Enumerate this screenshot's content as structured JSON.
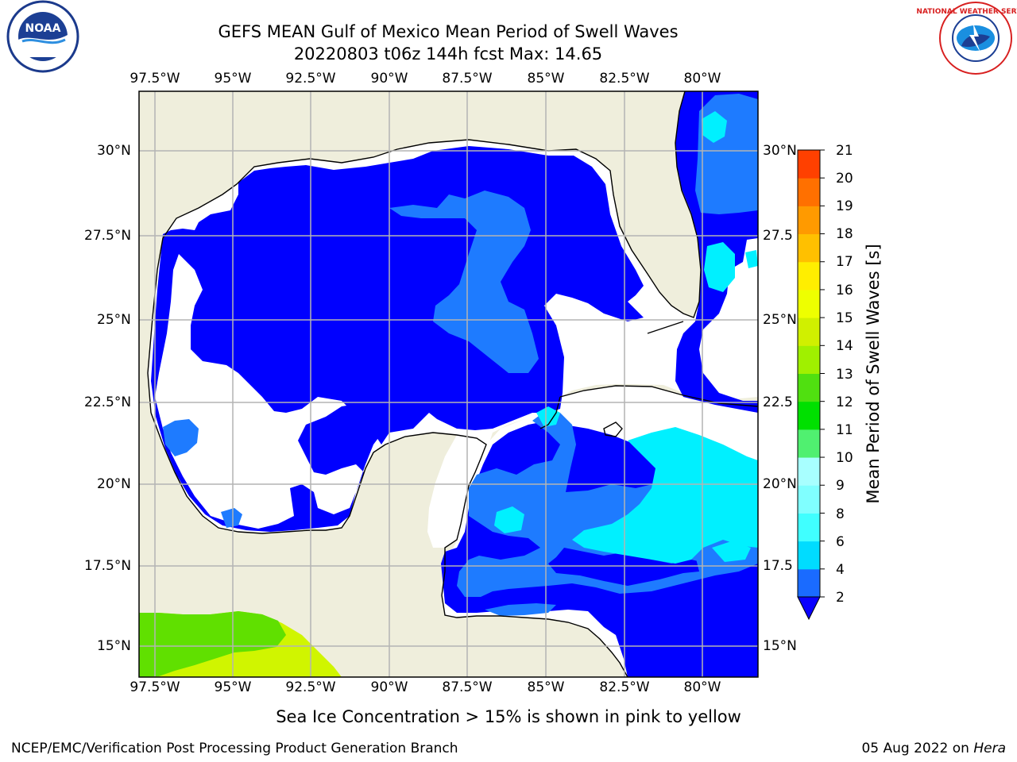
{
  "title": {
    "line1": "GEFS MEAN Gulf of Mexico Mean Period of Swell Waves",
    "line2": "20220803 t06z 144h fcst   Max: 14.65"
  },
  "lon_ticks": [
    "97.5°W",
    "95°W",
    "92.5°W",
    "90°W",
    "87.5°W",
    "85°W",
    "82.5°W",
    "80°W"
  ],
  "lat_ticks_left": [
    "30°N",
    "27.5°N",
    "25°N",
    "22.5°N",
    "20°N",
    "17.5°N",
    "15°N"
  ],
  "lat_ticks_right": [
    "30°N",
    "27.5",
    "25°N",
    "22.5",
    "20°N",
    "17.5",
    "15°N"
  ],
  "colorbar": {
    "label": "Mean Period of Swell Waves [s]",
    "ticks": [
      "2",
      "4",
      "6",
      "8",
      "9",
      "10",
      "11",
      "12",
      "13",
      "14",
      "15",
      "16",
      "17",
      "18",
      "19",
      "20",
      "21"
    ],
    "colors": [
      "#1a6bff",
      "#00dcff",
      "#40ffff",
      "#80ffff",
      "#a8ffff",
      "#50f070",
      "#00e000",
      "#50e010",
      "#a0f000",
      "#d0f000",
      "#eeff00",
      "#ffee00",
      "#ffc000",
      "#ff9a00",
      "#ff7000",
      "#ff4000",
      "#ff0000"
    ],
    "extend_color": "#0a00ff"
  },
  "palette": {
    "land": "#efeedc",
    "ocean_deep": "#0000ff",
    "ocean_mid": "#1e7bff",
    "ocean_light": "#00f0ff",
    "ice_green": "#60e000",
    "ice_yellow": "#d0f500",
    "grid": "#b4b4b4"
  },
  "note": "Sea Ice Concentration > 15% is shown in pink to yellow",
  "footer": {
    "left": "NCEP/EMC/Verification Post Processing Product Generation Branch",
    "right_date": "05 Aug 2022 on ",
    "right_host": "Hera"
  },
  "logos": {
    "noaa_text": "NOAA",
    "nws_text": "NATIONAL WEATHER SERVICE"
  }
}
